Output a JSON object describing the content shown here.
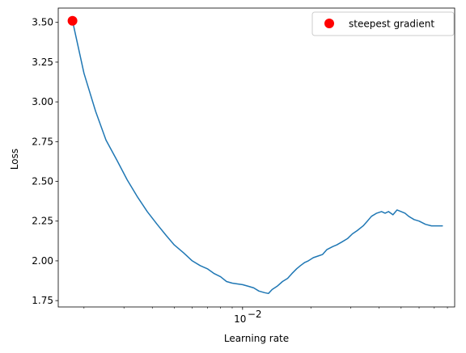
{
  "chart_data": {
    "type": "line",
    "xlabel": "Learning rate",
    "ylabel": "Loss",
    "x_scale": "log",
    "xlim": [
      0.00154,
      0.0861
    ],
    "ylim": [
      1.71,
      3.59
    ],
    "grid": false,
    "legend": {
      "position": "top-right",
      "entries": [
        {
          "label": "steepest gradient",
          "marker": "circle",
          "color": "#ff0000"
        }
      ]
    },
    "y_ticks": [
      1.75,
      2.0,
      2.25,
      2.5,
      2.75,
      3.0,
      3.25,
      3.5
    ],
    "y_tick_labels": [
      "1.75",
      "2.00",
      "2.25",
      "2.50",
      "2.75",
      "3.00",
      "3.25",
      "3.50"
    ],
    "x_major_ticks": [
      0.01
    ],
    "x_major_tick_labels": [
      "10",
      "−2"
    ],
    "x_minor_ticks": [
      0.002,
      0.003,
      0.004,
      0.005,
      0.006,
      0.007,
      0.008,
      0.009,
      0.02,
      0.03,
      0.04,
      0.05,
      0.06,
      0.07,
      0.08
    ],
    "series": [
      {
        "color": "#1f77b4",
        "x": [
          0.00178,
          0.002,
          0.00225,
          0.0025,
          0.0028,
          0.0031,
          0.00345,
          0.0038,
          0.0042,
          0.0046,
          0.005,
          0.0055,
          0.006,
          0.0065,
          0.007,
          0.0075,
          0.008,
          0.0085,
          0.009,
          0.0095,
          0.01,
          0.0106,
          0.0112,
          0.0118,
          0.0125,
          0.013,
          0.0135,
          0.0142,
          0.015,
          0.0158,
          0.0165,
          0.0173,
          0.018,
          0.0188,
          0.0195,
          0.0205,
          0.0215,
          0.0225,
          0.0235,
          0.025,
          0.026,
          0.0275,
          0.029,
          0.0305,
          0.032,
          0.034,
          0.0355,
          0.037,
          0.039,
          0.041,
          0.0425,
          0.044,
          0.046,
          0.048,
          0.05,
          0.052,
          0.054,
          0.057,
          0.06,
          0.064,
          0.068,
          0.072,
          0.076
        ],
        "y": [
          3.51,
          3.18,
          2.94,
          2.76,
          2.63,
          2.51,
          2.4,
          2.31,
          2.23,
          2.16,
          2.1,
          2.05,
          2.0,
          1.97,
          1.95,
          1.92,
          1.9,
          1.87,
          1.86,
          1.855,
          1.85,
          1.84,
          1.83,
          1.81,
          1.8,
          1.795,
          1.82,
          1.84,
          1.87,
          1.89,
          1.92,
          1.95,
          1.97,
          1.99,
          2.0,
          2.02,
          2.03,
          2.04,
          2.07,
          2.09,
          2.1,
          2.12,
          2.14,
          2.17,
          2.19,
          2.22,
          2.25,
          2.28,
          2.3,
          2.31,
          2.3,
          2.31,
          2.29,
          2.32,
          2.31,
          2.3,
          2.28,
          2.26,
          2.25,
          2.23,
          2.22,
          2.22,
          2.22
        ]
      }
    ],
    "annotations": [
      {
        "label": "steepest gradient",
        "type": "point",
        "x": 0.00178,
        "y": 3.51,
        "color": "#ff0000"
      }
    ]
  }
}
